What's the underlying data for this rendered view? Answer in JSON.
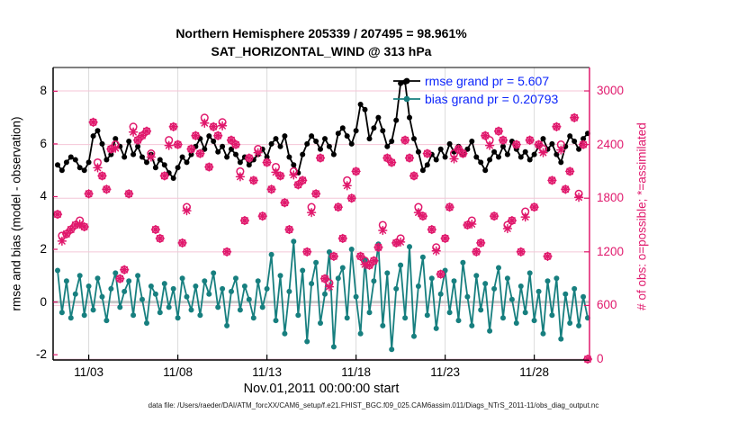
{
  "title": {
    "line1": "Northern Hemisphere 205339 / 207495 = 98.961%",
    "line2": "SAT_HORIZONTAL_WIND @ 313 hPa"
  },
  "xlabel": "Nov.01,2011 00:00:00 start",
  "ylabel_left": "rmse and bias (model - observation)",
  "ylabel_right": "# of obs: o=possible; *=assimilated",
  "footer": "data file: /Users/raeder/DAI/ATM_forcXX/CAM6_setup/f.e21.FHIST_BGC.f09_025.CAM6assim.011/Diags_NTrS_2011-11/obs_diag_output.nc",
  "legend": {
    "text_color": "#0b24fb",
    "items": [
      {
        "name": "rmse",
        "label": "rmse grand pr = 5.607",
        "color": "#000000"
      },
      {
        "name": "bias",
        "label": "bias grand pr = 0.20793",
        "color": "#177f7f"
      }
    ]
  },
  "colors": {
    "rmse": "#000000",
    "bias": "#177f7f",
    "obs": "#e0186c",
    "grid_vertical": "#dbdbdb",
    "grid_horizontal": "#f4c6d7",
    "zero_line": "#c8c8c8",
    "axis_left": "#000000",
    "axis_right": "#e0186c"
  },
  "chart_data": {
    "type": "line",
    "title": "Northern Hemisphere 205339 / 207495 = 98.961% — SAT_HORIZONTAL_WIND @ 313 hPa",
    "x_start_label": "Nov.01,2011 00:00:00 start",
    "x_days": {
      "start": 0.25,
      "step": 0.25,
      "count": 120
    },
    "xlim": [
      0,
      30.1
    ],
    "x_ticks": [
      {
        "t": 2,
        "label": "11/03"
      },
      {
        "t": 7,
        "label": "11/08"
      },
      {
        "t": 12,
        "label": "11/13"
      },
      {
        "t": 17,
        "label": "11/18"
      },
      {
        "t": 22,
        "label": "11/23"
      },
      {
        "t": 27,
        "label": "11/28"
      }
    ],
    "y_left": {
      "label": "rmse and bias (model - observation)",
      "range": [
        -2.2,
        8.9
      ],
      "ticks": [
        -2,
        0,
        2,
        4,
        6,
        8
      ]
    },
    "y_right": {
      "label": "# of obs: o=possible; *=assimilated",
      "range": [
        -10,
        3262
      ],
      "ticks": [
        0,
        600,
        1200,
        1800,
        2400,
        3000
      ]
    },
    "zero_line": 0,
    "grid": true,
    "legend_position": "top-right-inside",
    "series": [
      {
        "name": "rmse",
        "axis": "left",
        "color": "#000000",
        "marker": "dot",
        "grand_value": 5.607,
        "values": [
          5.2,
          5.0,
          5.3,
          5.5,
          5.4,
          5.1,
          5.0,
          5.3,
          6.3,
          6.5,
          6.0,
          5.4,
          5.6,
          6.2,
          5.9,
          5.5,
          6.1,
          5.6,
          5.9,
          5.5,
          5.3,
          5.6,
          5.1,
          5.4,
          5.2,
          4.9,
          4.7,
          5.1,
          5.5,
          5.3,
          5.6,
          5.9,
          6.2,
          5.8,
          6.3,
          6.1,
          5.7,
          5.9,
          5.5,
          5.8,
          5.6,
          5.3,
          5.5,
          5.2,
          5.4,
          5.6,
          5.8,
          5.5,
          6.0,
          6.2,
          5.9,
          6.3,
          5.5,
          5.2,
          4.9,
          5.6,
          6.0,
          6.3,
          6.1,
          5.8,
          6.2,
          5.9,
          5.6,
          6.4,
          6.6,
          6.3,
          6.0,
          6.5,
          7.5,
          7.3,
          6.2,
          6.6,
          7.0,
          6.5,
          5.9,
          6.1,
          6.9,
          8.3,
          8.35,
          7.0,
          6.2,
          5.7,
          5.0,
          5.2,
          5.6,
          5.4,
          5.8,
          5.5,
          6.0,
          5.7,
          5.9,
          5.6,
          5.8,
          6.1,
          5.5,
          5.3,
          5.0,
          5.4,
          5.7,
          5.5,
          5.9,
          5.6,
          6.1,
          5.8,
          5.5,
          5.7,
          5.4,
          5.6,
          5.9,
          6.2,
          5.8,
          6.0,
          5.6,
          5.3,
          5.9,
          6.3,
          6.1,
          5.8,
          6.2,
          6.4
        ]
      },
      {
        "name": "bias",
        "axis": "left",
        "color": "#177f7f",
        "marker": "dot",
        "grand_value": 0.20793,
        "values": [
          1.2,
          -0.4,
          0.8,
          -0.6,
          0.3,
          1.0,
          -0.5,
          0.6,
          -0.3,
          0.9,
          0.2,
          -0.7,
          0.5,
          1.1,
          -0.2,
          0.4,
          0.8,
          -0.5,
          1.0,
          0.1,
          -0.8,
          0.6,
          0.3,
          -0.4,
          0.7,
          -0.2,
          0.5,
          -0.6,
          0.9,
          0.2,
          -0.3,
          0.6,
          -0.5,
          0.8,
          0.3,
          1.1,
          -0.2,
          0.5,
          -0.9,
          0.4,
          0.9,
          -0.3,
          0.6,
          0.1,
          -0.6,
          0.8,
          -0.2,
          0.5,
          1.8,
          -0.7,
          1.0,
          -1.2,
          0.4,
          2.3,
          -0.5,
          1.2,
          -1.5,
          0.7,
          1.5,
          -0.8,
          0.3,
          1.9,
          -1.7,
          0.9,
          1.3,
          -0.6,
          2.0,
          0.2,
          -1.2,
          1.6,
          -0.4,
          0.8,
          2.2,
          -0.9,
          1.1,
          -1.8,
          0.5,
          1.4,
          -0.6,
          2.1,
          -1.3,
          0.6,
          1.7,
          -0.5,
          0.9,
          -1.0,
          0.3,
          1.2,
          -0.4,
          0.8,
          -0.7,
          1.5,
          0.2,
          -0.9,
          1.0,
          -0.3,
          0.7,
          -1.1,
          0.5,
          1.3,
          -0.6,
          0.9,
          0.1,
          -0.8,
          0.6,
          -0.4,
          1.1,
          -0.7,
          0.4,
          -1.2,
          0.8,
          -0.5,
          0.9,
          -1.4,
          0.3,
          -0.8,
          0.5,
          -0.9,
          0.2,
          -0.6
        ]
      },
      {
        "name": "obs_possible",
        "axis": "right",
        "color": "#e0186c",
        "marker": "circle",
        "values": [
          1620,
          1380,
          1400,
          1450,
          1500,
          1550,
          1480,
          1850,
          2650,
          2200,
          2050,
          1900,
          2350,
          2400,
          900,
          1000,
          1850,
          2600,
          2450,
          2500,
          2550,
          2300,
          1450,
          1350,
          2050,
          2450,
          2600,
          2400,
          1300,
          1700,
          2350,
          2500,
          2300,
          2700,
          2150,
          2600,
          2500,
          2650,
          1200,
          2450,
          2400,
          2100,
          1550,
          2250,
          2000,
          2350,
          1600,
          2200,
          1900,
          2150,
          2050,
          1750,
          1450,
          2100,
          1950,
          2000,
          1200,
          1700,
          1850,
          2250,
          900,
          850,
          1150,
          1700,
          1350,
          2000,
          1800,
          2100,
          1150,
          1100,
          1050,
          1100,
          1250,
          1500,
          2250,
          2200,
          1300,
          1350,
          2450,
          2250,
          2050,
          1700,
          1600,
          2300,
          1450,
          1250,
          950,
          1350,
          1700,
          2300,
          2350,
          2300,
          1500,
          1550,
          1200,
          1300,
          2500,
          2450,
          1600,
          2550,
          2450,
          1500,
          1550,
          2400,
          1200,
          1650,
          2450,
          1700,
          2400,
          2350,
          1150,
          2000,
          2600,
          2400,
          1900,
          2100,
          2700,
          1850,
          2400,
          0
        ]
      },
      {
        "name": "obs_assimilated",
        "axis": "right",
        "color": "#e0186c",
        "marker": "asterisk",
        "values": [
          1620,
          1320,
          1400,
          1450,
          1500,
          1510,
          1480,
          1850,
          2650,
          2140,
          2050,
          1900,
          2350,
          2360,
          900,
          1000,
          1850,
          2540,
          2450,
          2500,
          2550,
          2260,
          1450,
          1350,
          2050,
          2390,
          2600,
          2400,
          1300,
          1660,
          2350,
          2500,
          2300,
          2640,
          2150,
          2600,
          2500,
          2610,
          1200,
          2450,
          2400,
          2040,
          1550,
          2250,
          2000,
          2310,
          1600,
          2200,
          1900,
          2090,
          2050,
          1750,
          1450,
          2060,
          1950,
          2000,
          1200,
          1640,
          1850,
          2250,
          900,
          810,
          1150,
          1700,
          1350,
          1940,
          1800,
          2100,
          1150,
          1060,
          1050,
          1100,
          1250,
          1440,
          2250,
          2200,
          1300,
          1310,
          2450,
          2250,
          2050,
          1640,
          1600,
          2300,
          1450,
          1210,
          950,
          1350,
          1700,
          2240,
          2350,
          2300,
          1500,
          1510,
          1200,
          1300,
          2500,
          2390,
          1600,
          2550,
          2450,
          1460,
          1550,
          2400,
          1200,
          1590,
          2450,
          1700,
          2400,
          2310,
          1150,
          2000,
          2600,
          2340,
          1900,
          2100,
          2700,
          1810,
          2400,
          0
        ]
      }
    ]
  }
}
